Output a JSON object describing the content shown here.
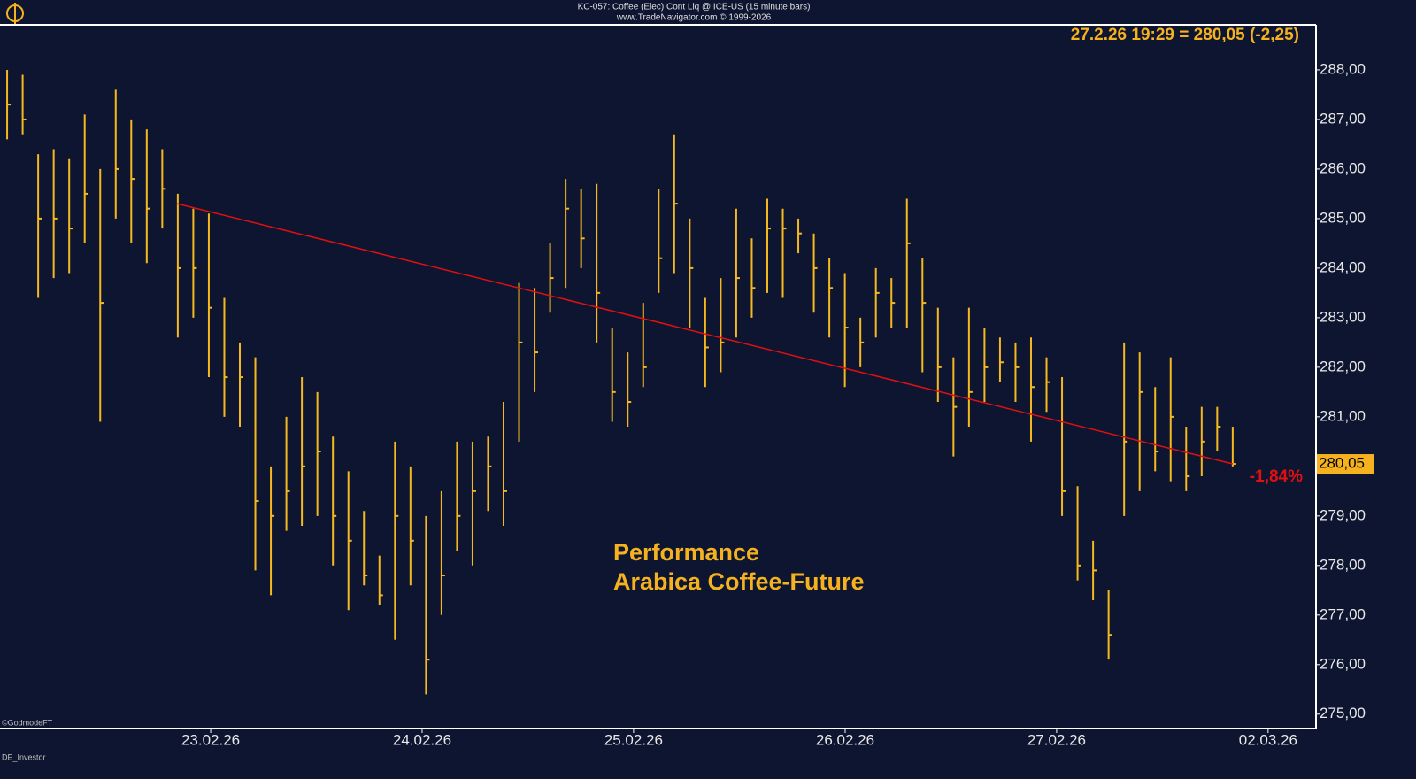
{
  "chart_data": {
    "type": "ohlc",
    "title": "KC-057:  Coffee (Elec) Cont Liq @ ICE-US  (15 minute bars)",
    "subtitle": "www.TradeNavigator.com © 1999-2026",
    "readout": "27.2.26 19:29 = 280,05 (-2,25)",
    "last_price": {
      "value": 280.05,
      "label": "280,05"
    },
    "performance_label": "-1,84%",
    "annotation_lines": [
      "Performance",
      "Arabica Coffee-Future"
    ],
    "footer_texts": [
      "©GodmodeFT",
      "DE_Investor"
    ],
    "color": "#f5b81e",
    "trendline": {
      "color": "#e01010",
      "x": [
        10.95,
        79
      ],
      "y": [
        285.3,
        280.05
      ]
    },
    "high": [
      288.0,
      287.9,
      286.3,
      286.4,
      286.2,
      287.1,
      286.0,
      287.6,
      287.0,
      286.8,
      286.4,
      285.5,
      285.2,
      285.1,
      283.4,
      282.5,
      282.2,
      280.0,
      281.0,
      281.8,
      281.5,
      280.6,
      279.9,
      279.1,
      278.2,
      280.5,
      280.0,
      279.0,
      279.5,
      280.5,
      280.5,
      280.6,
      281.3,
      283.7,
      283.6,
      284.5,
      285.8,
      285.6,
      285.7,
      282.8,
      282.3,
      283.3,
      285.6,
      286.7,
      285.0,
      283.4,
      283.8,
      285.2,
      284.6,
      285.4,
      285.2,
      285.0,
      284.7,
      284.2,
      283.9,
      283.0,
      284.0,
      283.8,
      285.4,
      284.2,
      283.2,
      282.2,
      283.2,
      282.8,
      282.6,
      282.5,
      282.6,
      282.2,
      281.8,
      279.6,
      278.5,
      277.5,
      282.5,
      282.3,
      281.6,
      282.2,
      280.8,
      281.2,
      281.2,
      280.8
    ],
    "low": [
      286.6,
      286.7,
      283.4,
      283.8,
      283.9,
      284.5,
      280.9,
      285.0,
      284.5,
      284.1,
      284.8,
      282.6,
      283.0,
      281.8,
      281.0,
      280.8,
      277.9,
      277.4,
      278.7,
      278.8,
      279.0,
      278.0,
      277.1,
      277.6,
      277.2,
      276.5,
      277.6,
      275.4,
      277.0,
      278.3,
      278.0,
      279.1,
      278.8,
      280.5,
      281.5,
      283.1,
      283.6,
      284.0,
      282.5,
      280.9,
      280.8,
      281.6,
      283.5,
      283.9,
      282.8,
      281.6,
      281.9,
      282.6,
      283.0,
      283.5,
      283.4,
      284.3,
      283.1,
      282.6,
      281.6,
      282.0,
      282.6,
      282.8,
      282.8,
      281.9,
      281.3,
      280.2,
      280.8,
      281.3,
      281.7,
      281.3,
      280.5,
      281.1,
      279.0,
      277.7,
      277.3,
      276.1,
      279.0,
      279.5,
      279.9,
      279.7,
      279.5,
      279.8,
      280.3,
      280.0
    ],
    "close": [
      287.3,
      287.0,
      285.0,
      285.0,
      284.8,
      285.5,
      283.3,
      286.0,
      285.8,
      285.2,
      285.6,
      284.0,
      284.0,
      283.2,
      281.8,
      281.8,
      279.3,
      279.0,
      279.5,
      280.0,
      280.3,
      279.0,
      278.5,
      277.8,
      277.4,
      279.0,
      278.5,
      276.1,
      277.8,
      279.0,
      279.5,
      280.0,
      279.5,
      282.5,
      282.3,
      283.8,
      285.2,
      284.6,
      283.5,
      281.5,
      281.3,
      282.0,
      284.2,
      285.3,
      284.0,
      282.4,
      282.5,
      283.8,
      283.6,
      284.8,
      284.8,
      284.7,
      284.0,
      283.6,
      282.8,
      282.5,
      283.5,
      283.3,
      284.5,
      283.3,
      282.0,
      281.2,
      281.5,
      282.0,
      282.1,
      282.0,
      281.6,
      281.7,
      279.5,
      278.0,
      277.9,
      276.6,
      280.5,
      281.5,
      280.3,
      281.0,
      279.8,
      280.5,
      280.8,
      280.05
    ],
    "xlim": [
      -0.46,
      84.37
    ],
    "xticks": [
      {
        "value": 13.12,
        "label": "23.02.26"
      },
      {
        "value": 26.75,
        "label": "24.02.26"
      },
      {
        "value": 40.38,
        "label": "25.02.26"
      },
      {
        "value": 54.02,
        "label": "26.02.26"
      },
      {
        "value": 67.65,
        "label": "27.02.26"
      },
      {
        "value": 81.28,
        "label": "02.03.26"
      }
    ],
    "ylim": [
      274.71,
      288.91
    ],
    "yticks": [
      {
        "value": 275,
        "label": "275,00"
      },
      {
        "value": 276,
        "label": "276,00"
      },
      {
        "value": 277,
        "label": "277,00"
      },
      {
        "value": 278,
        "label": "278,00"
      },
      {
        "value": 279,
        "label": "279,00"
      },
      {
        "value": 280,
        "label": "280,00"
      },
      {
        "value": 281,
        "label": "281,00"
      },
      {
        "value": 282,
        "label": "282,00"
      },
      {
        "value": 283,
        "label": "283,00"
      },
      {
        "value": 284,
        "label": "284,00"
      },
      {
        "value": 285,
        "label": "285,00"
      },
      {
        "value": 286,
        "label": "286,00"
      },
      {
        "value": 287,
        "label": "287,00"
      },
      {
        "value": 288,
        "label": "288,00"
      }
    ]
  }
}
